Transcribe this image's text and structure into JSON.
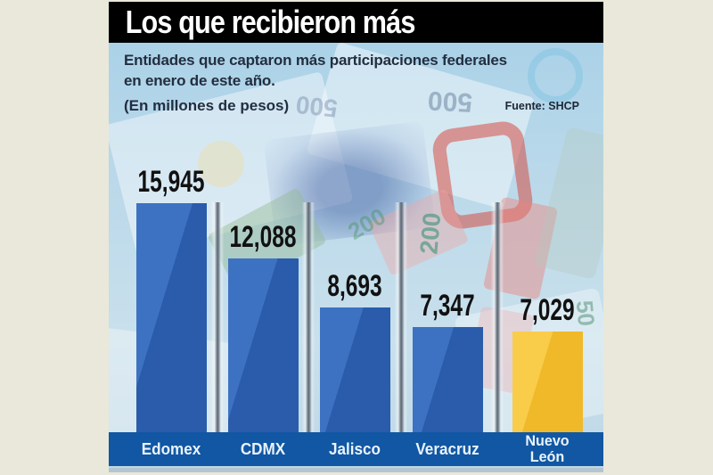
{
  "header": {
    "title": "Los que recibieron más"
  },
  "intro": {
    "subtitle_line1": "Entidades que captaron más participaciones federales",
    "subtitle_line2": "en enero de este año.",
    "units_note": "(En millones de pesos)",
    "source": "Fuente: SHCP"
  },
  "background_texture": {
    "faded_banknote_numbers": [
      {
        "text": "500"
      },
      {
        "text": "500"
      },
      {
        "text": "200"
      },
      {
        "text": "200"
      },
      {
        "text": "50"
      }
    ]
  },
  "chart_data": {
    "type": "bar",
    "orientation": "vertical",
    "title": "Los que recibieron más",
    "subtitle": "Entidades que captaron más participaciones federales en enero de este año.",
    "units": "En millones de pesos",
    "source": "Fuente: SHCP",
    "categories": [
      "Edomex",
      "CDMX",
      "Jalisco",
      "Veracruz",
      "Nuevo León"
    ],
    "values": [
      15945,
      12088,
      8693,
      7347,
      7029
    ],
    "value_labels": [
      "15,945",
      "12,088",
      "8,693",
      "7,347",
      "7,029"
    ],
    "bar_colors": [
      "#2a5cab",
      "#2a5cab",
      "#2a5cab",
      "#2a5cab",
      "#f0b929"
    ],
    "bar_colors_light": [
      "#3d72c2",
      "#3d72c2",
      "#3d72c2",
      "#3d72c2",
      "#f9cc49"
    ],
    "highlighted_category": "Nuevo León",
    "ylim": [
      0,
      16000
    ],
    "grid": false,
    "legend": false
  },
  "colors": {
    "frame_background": "#e9e8da",
    "panel_background": "#b7d7e9",
    "header_background": "#000000",
    "header_text": "#ffffff",
    "subtitle_text": "#232e3f",
    "value_text": "#111111",
    "axis_strip_background": "#1157a3",
    "axis_label_text": "#eaf3fc",
    "column_divider": "#66727e"
  }
}
